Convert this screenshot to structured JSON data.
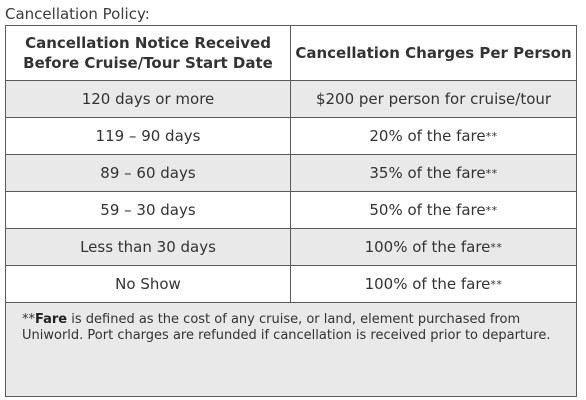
{
  "heading": "Cancellation Policy:",
  "table": {
    "header_line1": "Cancellation Notice Received",
    "header_line2": "Before Cruise/Tour Start Date",
    "header_charges": "Cancellation Charges Per Person",
    "rows": [
      {
        "notice": "120 days or more",
        "charge": "$200 per person for cruise/tour",
        "mark": ""
      },
      {
        "notice": "119 – 90 days",
        "charge": "20% of the fare",
        "mark": "**"
      },
      {
        "notice": "89 – 60 days",
        "charge": "35% of the fare",
        "mark": "**"
      },
      {
        "notice": "59 – 30 days",
        "charge": "50% of the fare",
        "mark": "**"
      },
      {
        "notice": "Less than 30 days",
        "charge": "100% of the fare",
        "mark": "**"
      },
      {
        "notice": "No Show",
        "charge": "100% of the fare",
        "mark": "**"
      }
    ]
  },
  "footnote": {
    "marker": "**",
    "bold_term": "Fare",
    "text": " is defined as the cost of any cruise, or land, element purchased from Uniworld. Port charges are refunded if cancellation is received prior to departure."
  },
  "colors": {
    "shaded_row": "#e9e9e9",
    "border": "#5a5a5a",
    "text": "#333333"
  }
}
